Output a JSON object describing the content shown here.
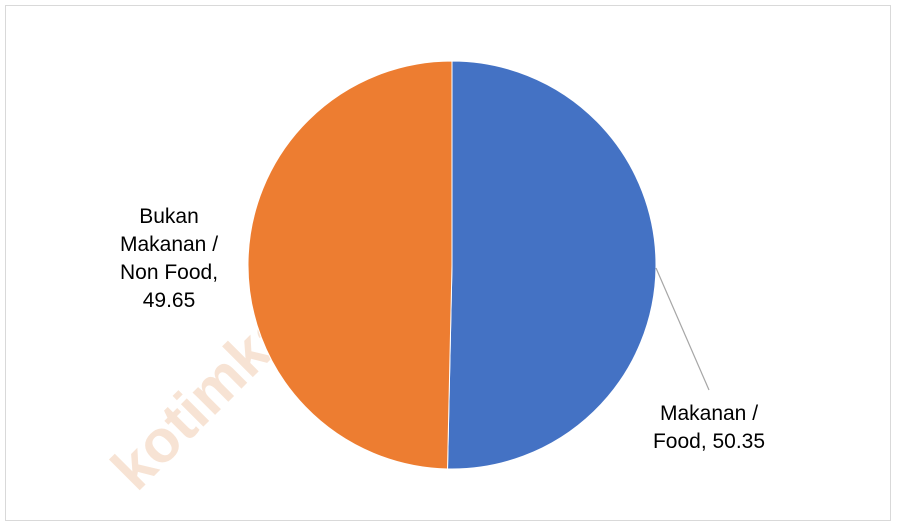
{
  "watermark": "kotimkab.bps.go.id",
  "chart_data": {
    "type": "pie",
    "title": "",
    "slices": [
      {
        "name": "Makanan / Food",
        "value": 50.35,
        "color": "#4472C4",
        "label_lines": [
          "Makanan /",
          "Food, 50.35"
        ]
      },
      {
        "name": "Bukan Makanan / Non Food",
        "value": 49.65,
        "color": "#ED7D31",
        "label_lines": [
          "Bukan",
          "Makanan /",
          "Non Food,",
          "49.65"
        ]
      }
    ],
    "legend": "none",
    "start_angle": "12 o'clock",
    "direction": "clockwise"
  }
}
